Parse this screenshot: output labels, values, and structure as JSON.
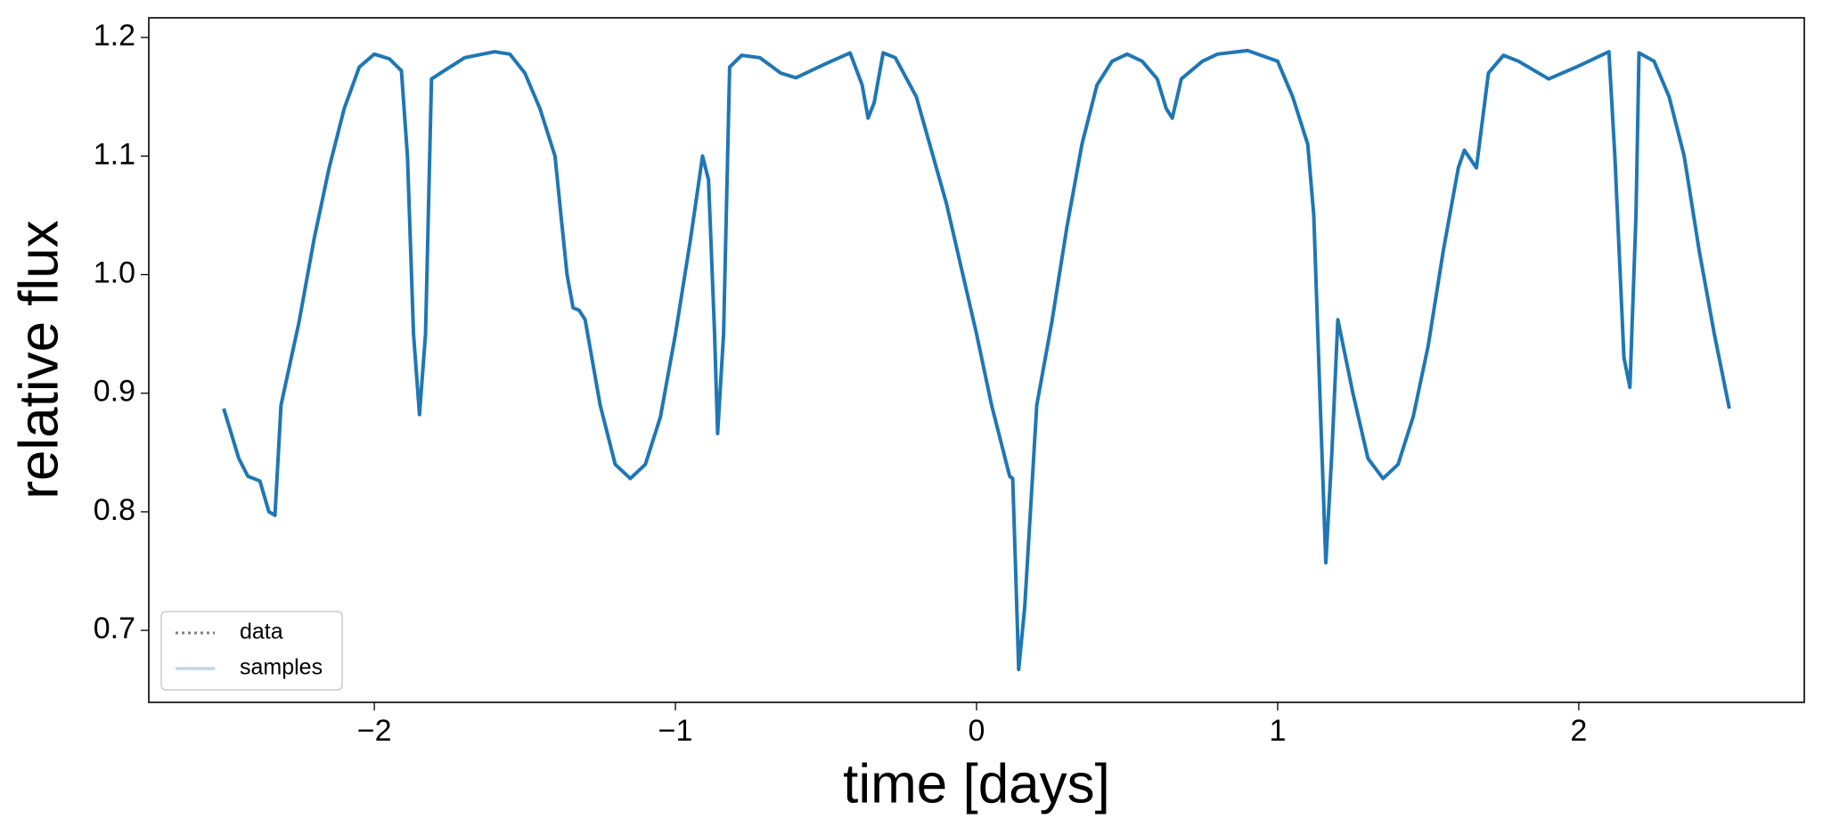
{
  "chart_data": {
    "type": "line",
    "xlabel": "time [days]",
    "ylabel": "relative flux",
    "x": [
      -2.5,
      -2.45,
      -2.42,
      -2.38,
      -2.35,
      -2.33,
      -2.31,
      -2.25,
      -2.2,
      -2.15,
      -2.1,
      -2.05,
      -2.0,
      -1.95,
      -1.91,
      -1.89,
      -1.87,
      -1.85,
      -1.83,
      -1.81,
      -1.78,
      -1.7,
      -1.6,
      -1.55,
      -1.5,
      -1.45,
      -1.4,
      -1.38,
      -1.36,
      -1.34,
      -1.32,
      -1.3,
      -1.25,
      -1.2,
      -1.15,
      -1.1,
      -1.05,
      -1.0,
      -0.95,
      -0.91,
      -0.89,
      -0.87,
      -0.86,
      -0.84,
      -0.82,
      -0.78,
      -0.72,
      -0.65,
      -0.6,
      -0.5,
      -0.42,
      -0.38,
      -0.36,
      -0.34,
      -0.31,
      -0.27,
      -0.2,
      -0.1,
      0.0,
      0.05,
      0.1,
      0.11,
      0.12,
      0.13,
      0.14,
      0.16,
      0.2,
      0.25,
      0.3,
      0.35,
      0.4,
      0.45,
      0.5,
      0.55,
      0.6,
      0.63,
      0.65,
      0.68,
      0.75,
      0.8,
      0.9,
      1.0,
      1.05,
      1.1,
      1.12,
      1.14,
      1.16,
      1.18,
      1.2,
      1.25,
      1.3,
      1.35,
      1.4,
      1.45,
      1.5,
      1.55,
      1.6,
      1.62,
      1.66,
      1.7,
      1.75,
      1.8,
      1.9,
      2.0,
      2.1,
      2.12,
      2.15,
      2.17,
      2.19,
      2.2,
      2.25,
      2.3,
      2.35,
      2.4,
      2.45,
      2.5
    ],
    "series": [
      {
        "name": "data",
        "color": "#808080",
        "dotted": true,
        "values": [
          0.887,
          0.845,
          0.83,
          0.826,
          0.8,
          0.797,
          0.89,
          0.96,
          1.03,
          1.09,
          1.14,
          1.175,
          1.186,
          1.182,
          1.172,
          1.1,
          0.95,
          0.882,
          0.95,
          1.165,
          1.17,
          1.183,
          1.188,
          1.186,
          1.17,
          1.14,
          1.1,
          1.05,
          1.0,
          0.972,
          0.97,
          0.962,
          0.89,
          0.84,
          0.828,
          0.84,
          0.88,
          0.95,
          1.03,
          1.1,
          1.08,
          0.95,
          0.866,
          0.95,
          1.175,
          1.185,
          1.183,
          1.17,
          1.166,
          1.178,
          1.187,
          1.16,
          1.132,
          1.145,
          1.187,
          1.183,
          1.15,
          1.06,
          0.95,
          0.89,
          0.84,
          0.83,
          0.828,
          0.75,
          0.667,
          0.72,
          0.89,
          0.96,
          1.04,
          1.11,
          1.16,
          1.18,
          1.186,
          1.18,
          1.165,
          1.14,
          1.132,
          1.165,
          1.18,
          1.186,
          1.189,
          1.18,
          1.15,
          1.11,
          1.05,
          0.9,
          0.757,
          0.85,
          0.962,
          0.9,
          0.845,
          0.828,
          0.84,
          0.88,
          0.94,
          1.02,
          1.09,
          1.105,
          1.09,
          1.17,
          1.185,
          1.18,
          1.165,
          1.176,
          1.188,
          1.1,
          0.93,
          0.905,
          1.05,
          1.187,
          1.18,
          1.15,
          1.1,
          1.02,
          0.95,
          0.887
        ]
      },
      {
        "name": "samples",
        "color": "#1f77b4",
        "alpha": 0.3,
        "values": [
          0.887,
          0.845,
          0.83,
          0.826,
          0.8,
          0.797,
          0.89,
          0.96,
          1.03,
          1.09,
          1.14,
          1.175,
          1.186,
          1.182,
          1.172,
          1.1,
          0.95,
          0.882,
          0.95,
          1.165,
          1.17,
          1.183,
          1.188,
          1.186,
          1.17,
          1.14,
          1.1,
          1.05,
          1.0,
          0.972,
          0.97,
          0.962,
          0.89,
          0.84,
          0.828,
          0.84,
          0.88,
          0.95,
          1.03,
          1.1,
          1.08,
          0.95,
          0.866,
          0.95,
          1.175,
          1.185,
          1.183,
          1.17,
          1.166,
          1.178,
          1.187,
          1.16,
          1.132,
          1.145,
          1.187,
          1.183,
          1.15,
          1.06,
          0.95,
          0.89,
          0.84,
          0.83,
          0.828,
          0.75,
          0.667,
          0.72,
          0.89,
          0.96,
          1.04,
          1.11,
          1.16,
          1.18,
          1.186,
          1.18,
          1.165,
          1.14,
          1.132,
          1.165,
          1.18,
          1.186,
          1.189,
          1.18,
          1.15,
          1.11,
          1.05,
          0.9,
          0.757,
          0.85,
          0.962,
          0.9,
          0.845,
          0.828,
          0.84,
          0.88,
          0.94,
          1.02,
          1.09,
          1.105,
          1.09,
          1.17,
          1.185,
          1.18,
          1.165,
          1.176,
          1.188,
          1.1,
          0.93,
          0.905,
          1.05,
          1.187,
          1.18,
          1.15,
          1.1,
          1.02,
          0.95,
          0.887
        ]
      }
    ],
    "xlim": [
      -2.749,
      2.749
    ],
    "ylim": [
      0.6393,
      1.2166
    ],
    "xticks": [
      {
        "value": -2,
        "label": "−2"
      },
      {
        "value": -1,
        "label": "−1"
      },
      0,
      1,
      2
    ],
    "yticks": [
      0.7,
      0.8,
      0.9,
      {
        "value": 1,
        "label": "1.0"
      },
      1.1,
      1.2
    ],
    "legend": "lower left",
    "grid": false
  }
}
